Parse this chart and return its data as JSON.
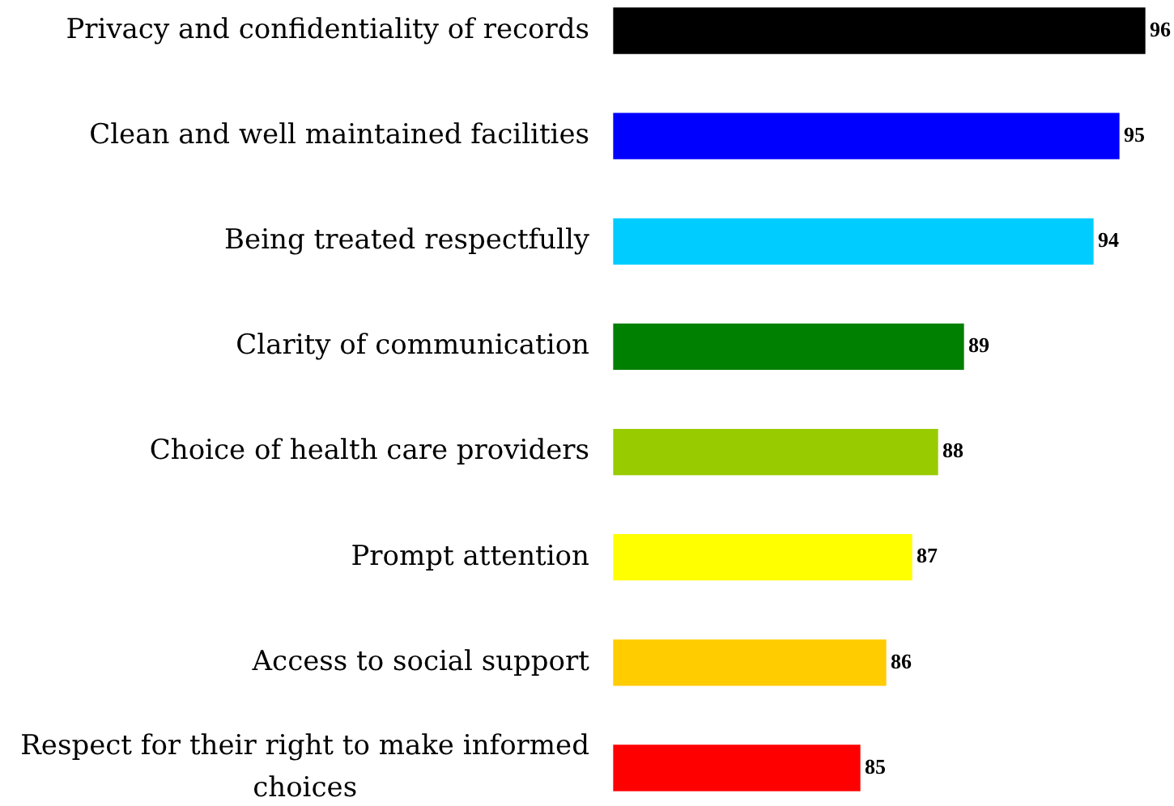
{
  "chart_data": {
    "type": "bar",
    "orientation": "horizontal",
    "categories": [
      "Privacy and confidentiality of records",
      "Clean and well maintained facilities",
      "Being treated respectfully",
      "Clarity of communication",
      "Choice of health care providers",
      "Prompt attention",
      "Access to social support",
      "Respect for their right to make informed choices"
    ],
    "values": [
      96,
      95,
      94,
      89,
      88,
      87,
      86,
      85
    ],
    "colors": [
      "#000000",
      "#0000ff",
      "#00ccff",
      "#008000",
      "#99cc00",
      "#ffff00",
      "#ffcc00",
      "#ff0000"
    ],
    "xlim": [
      75.5,
      96
    ],
    "data_labels": true
  }
}
